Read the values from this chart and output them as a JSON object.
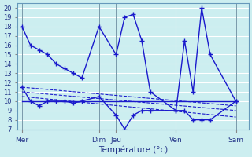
{
  "background_color": "#cceef0",
  "grid_color": "#ffffff",
  "line_color": "#1a1acc",
  "xlabel": "Température (°c)",
  "ylim": [
    7,
    20.5
  ],
  "ytick_min": 7,
  "ytick_max": 20,
  "x_day_labels": [
    "Mer",
    "Dim",
    "Jeu",
    "Ven",
    "Sam"
  ],
  "x_day_positions": [
    0,
    9,
    11,
    18,
    25
  ],
  "line1": {
    "x": [
      0,
      1,
      2,
      3,
      4,
      5,
      6,
      7,
      9,
      11,
      12,
      13,
      14,
      15,
      18,
      19,
      20,
      21,
      22,
      25
    ],
    "y": [
      18,
      16,
      15.5,
      15,
      14,
      13.5,
      13,
      12.5,
      18,
      15,
      19,
      19.3,
      16.5,
      11,
      9,
      16.5,
      11,
      20,
      15,
      10
    ],
    "ls": "-",
    "marker": "+"
  },
  "line2": {
    "x": [
      0,
      1,
      2,
      3,
      4,
      5,
      6,
      7,
      9,
      11,
      12,
      13,
      14,
      15,
      18,
      19,
      20,
      21,
      22,
      25
    ],
    "y": [
      11.5,
      10,
      9.5,
      10,
      10,
      10,
      9.8,
      10,
      10.5,
      8.5,
      7,
      8.5,
      9,
      9,
      9,
      9,
      8,
      8,
      8,
      10
    ],
    "ls": "-",
    "marker": "+"
  },
  "line_flat": {
    "x": [
      0,
      25
    ],
    "y": [
      10,
      10
    ],
    "ls": "-",
    "marker": null
  },
  "dashed_lines": [
    {
      "x": [
        0,
        25
      ],
      "y": [
        11.5,
        9.5
      ]
    },
    {
      "x": [
        0,
        25
      ],
      "y": [
        11.0,
        9.0
      ]
    },
    {
      "x": [
        0,
        25
      ],
      "y": [
        10.5,
        8.3
      ]
    }
  ]
}
